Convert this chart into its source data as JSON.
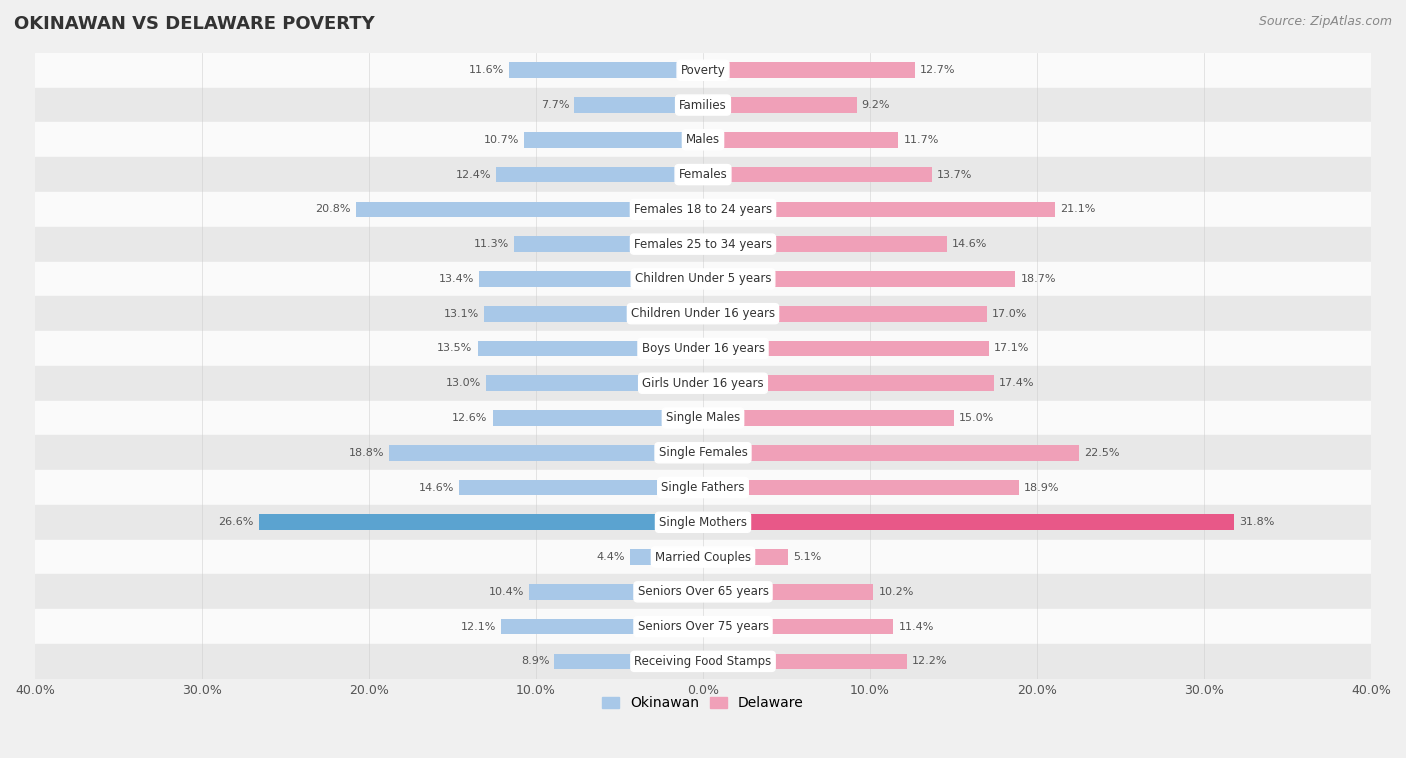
{
  "title": "OKINAWAN VS DELAWARE POVERTY",
  "source": "Source: ZipAtlas.com",
  "categories": [
    "Poverty",
    "Families",
    "Males",
    "Females",
    "Females 18 to 24 years",
    "Females 25 to 34 years",
    "Children Under 5 years",
    "Children Under 16 years",
    "Boys Under 16 years",
    "Girls Under 16 years",
    "Single Males",
    "Single Females",
    "Single Fathers",
    "Single Mothers",
    "Married Couples",
    "Seniors Over 65 years",
    "Seniors Over 75 years",
    "Receiving Food Stamps"
  ],
  "okinawan": [
    11.6,
    7.7,
    10.7,
    12.4,
    20.8,
    11.3,
    13.4,
    13.1,
    13.5,
    13.0,
    12.6,
    18.8,
    14.6,
    26.6,
    4.4,
    10.4,
    12.1,
    8.9
  ],
  "delaware": [
    12.7,
    9.2,
    11.7,
    13.7,
    21.1,
    14.6,
    18.7,
    17.0,
    17.1,
    17.4,
    15.0,
    22.5,
    18.9,
    31.8,
    5.1,
    10.2,
    11.4,
    12.2
  ],
  "okinawan_color": "#a8c8e8",
  "delaware_color": "#f0a0b8",
  "okinawan_highlight_color": "#5ba3d0",
  "delaware_highlight_color": "#e85888",
  "background_color": "#f0f0f0",
  "row_color_light": "#fafafa",
  "row_color_dark": "#e8e8e8",
  "xlim": 40.0,
  "bar_height": 0.45,
  "legend_okinawan": "Okinawan",
  "legend_delaware": "Delaware",
  "label_fontsize": 8.5,
  "value_fontsize": 8.0,
  "title_fontsize": 13,
  "source_fontsize": 9
}
